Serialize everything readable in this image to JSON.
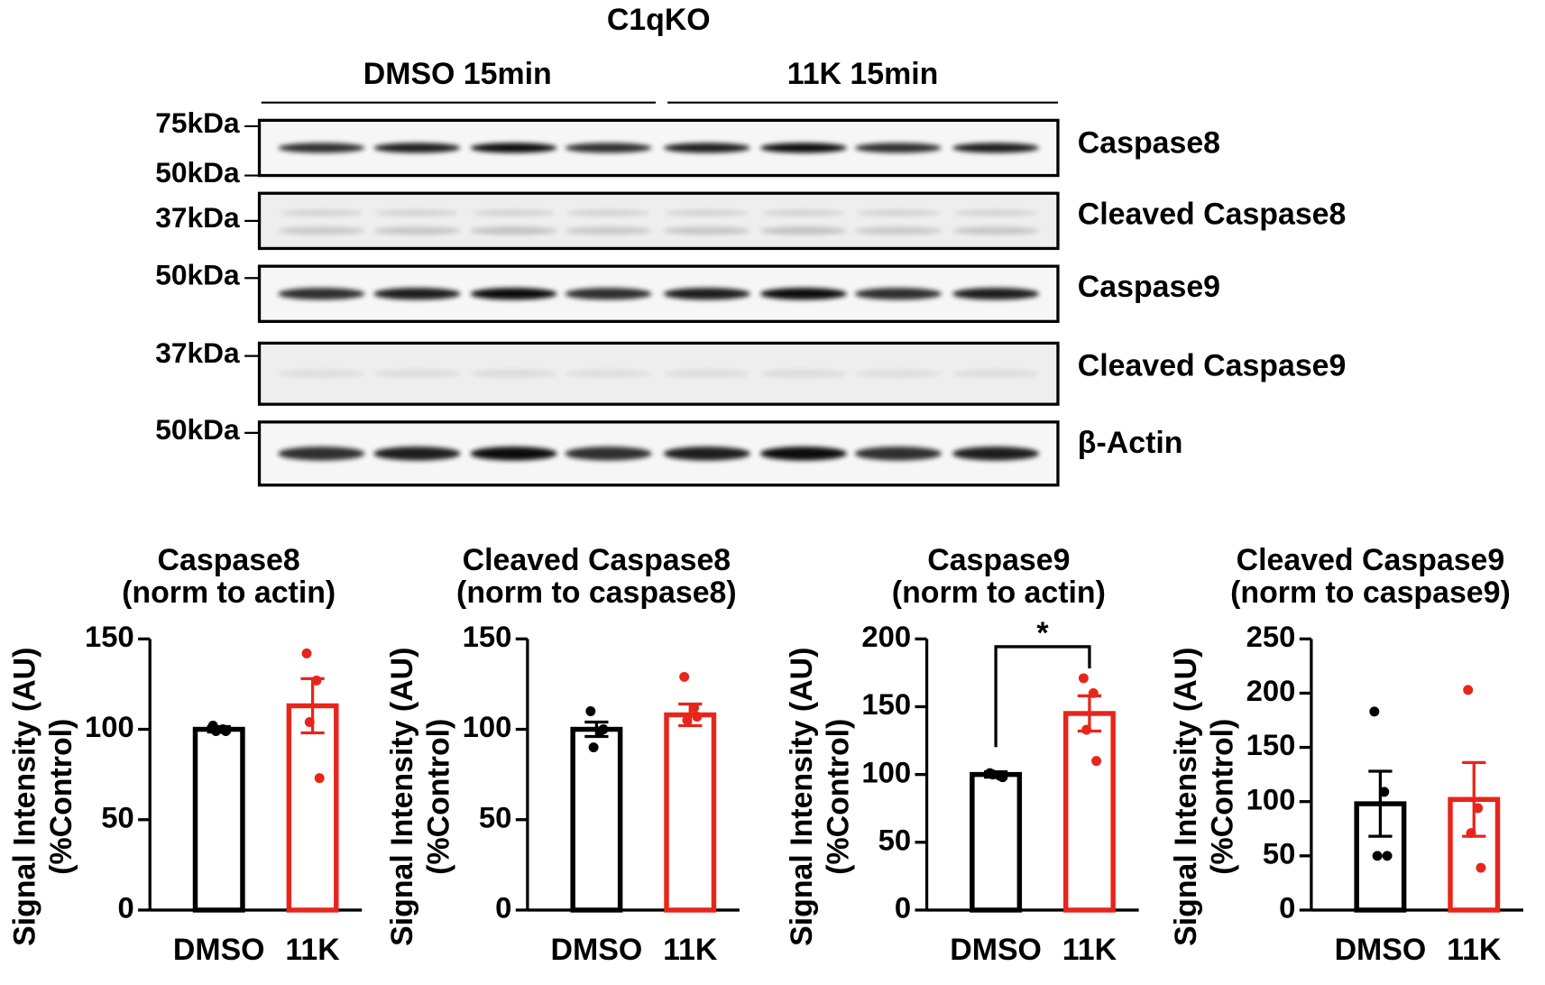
{
  "blot": {
    "title": "C1qKO",
    "groups": [
      "DMSO 15min",
      "11K 15min"
    ],
    "markers": [
      "75kDa",
      "50kDa",
      "37kDa",
      "50kDa",
      "37kDa",
      "50kDa"
    ],
    "proteins": [
      "Caspase8",
      "Cleaved Caspase8",
      "Caspase9",
      "Cleaved Caspase9",
      "β-Actin"
    ]
  },
  "chart_data": [
    {
      "type": "bar",
      "title": "Caspase8",
      "subtitle": "(norm to actin)",
      "ylabel": [
        "Signal Intensity (AU)",
        "(%Control)"
      ],
      "categories": [
        "DMSO",
        "11K"
      ],
      "values": [
        100,
        113
      ],
      "errors": [
        1.5,
        15
      ],
      "colors": [
        "#000000",
        "#e8251b"
      ],
      "points": [
        [
          102,
          100,
          99,
          99
        ],
        [
          142,
          127,
          104,
          73
        ]
      ],
      "ylim": [
        0,
        150
      ],
      "yticks": [
        0,
        50,
        100,
        150
      ]
    },
    {
      "type": "bar",
      "title": "Cleaved Caspase8",
      "subtitle": "(norm to caspase8)",
      "ylabel": [
        "Signal Intensity (AU)",
        "(%Control)"
      ],
      "categories": [
        "DMSO",
        "11K"
      ],
      "values": [
        100,
        108
      ],
      "errors": [
        4,
        6
      ],
      "colors": [
        "#000000",
        "#e8251b"
      ],
      "points": [
        [
          110,
          99,
          90,
          100
        ],
        [
          129,
          112,
          105,
          107
        ]
      ],
      "ylim": [
        0,
        150
      ],
      "yticks": [
        0,
        50,
        100,
        150
      ]
    },
    {
      "type": "bar",
      "title": "Caspase9",
      "subtitle": "(norm to actin)",
      "ylabel": [
        "Signal Intensity (AU)",
        "(%Control)"
      ],
      "categories": [
        "DMSO",
        "11K"
      ],
      "values": [
        100,
        145
      ],
      "errors": [
        2,
        13
      ],
      "colors": [
        "#000000",
        "#e8251b"
      ],
      "points": [
        [
          101,
          99,
          100,
          98
        ],
        [
          171,
          160,
          133,
          110
        ]
      ],
      "ylim": [
        0,
        200
      ],
      "yticks": [
        0,
        50,
        100,
        150,
        200
      ],
      "annotation": "*"
    },
    {
      "type": "bar",
      "title": "Cleaved Caspase9",
      "subtitle": "(norm to caspase9)",
      "ylabel": [
        "Signal Intensity (AU)",
        "(%Control)"
      ],
      "categories": [
        "DMSO",
        "11K"
      ],
      "values": [
        98,
        102
      ],
      "errors": [
        30,
        34
      ],
      "colors": [
        "#000000",
        "#e8251b"
      ],
      "points": [
        [
          183,
          109,
          50,
          50
        ],
        [
          203,
          94,
          71,
          39
        ]
      ],
      "ylim": [
        0,
        250
      ],
      "yticks": [
        0,
        50,
        100,
        150,
        200,
        250
      ]
    }
  ]
}
